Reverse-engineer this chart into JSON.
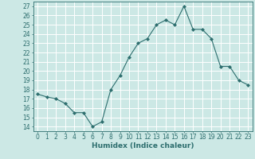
{
  "x": [
    0,
    1,
    2,
    3,
    4,
    5,
    6,
    7,
    8,
    9,
    10,
    11,
    12,
    13,
    14,
    15,
    16,
    17,
    18,
    19,
    20,
    21,
    22,
    23
  ],
  "y": [
    17.5,
    17.2,
    17.0,
    16.5,
    15.5,
    15.5,
    14.0,
    14.5,
    18.0,
    19.5,
    21.5,
    23.0,
    23.5,
    25.0,
    25.5,
    25.0,
    27.0,
    24.5,
    24.5,
    23.5,
    20.5,
    20.5,
    19.0,
    18.5
  ],
  "line_color": "#2d6e6e",
  "marker": "D",
  "marker_size": 2.0,
  "bg_color": "#cce8e5",
  "grid_color": "#ffffff",
  "xlabel": "Humidex (Indice chaleur)",
  "ylabel": "",
  "xlim": [
    -0.5,
    23.5
  ],
  "ylim": [
    13.5,
    27.5
  ],
  "yticks": [
    14,
    15,
    16,
    17,
    18,
    19,
    20,
    21,
    22,
    23,
    24,
    25,
    26,
    27
  ],
  "xticks": [
    0,
    1,
    2,
    3,
    4,
    5,
    6,
    7,
    8,
    9,
    10,
    11,
    12,
    13,
    14,
    15,
    16,
    17,
    18,
    19,
    20,
    21,
    22,
    23
  ],
  "tick_label_fontsize": 5.5,
  "xlabel_fontsize": 6.5,
  "linewidth": 0.8
}
